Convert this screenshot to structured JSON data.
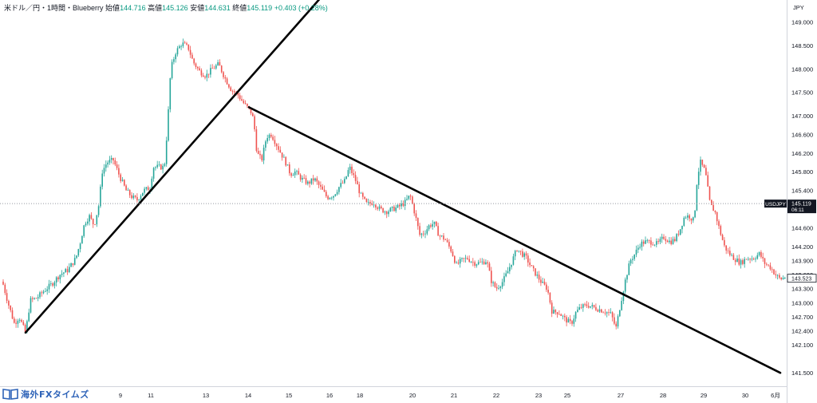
{
  "legend": {
    "symbol": "米ドル／円・1時間・Blueberry",
    "open_label": "始値",
    "open": "144.716",
    "high_label": "高値",
    "high": "145.126",
    "low_label": "安値",
    "low": "144.631",
    "close_label": "終値",
    "close": "145.119",
    "change": "+0.403 (+0.28%)"
  },
  "logo": {
    "text": "海外FXタイムズ"
  },
  "colors": {
    "up": "#26a69a",
    "down": "#ef5350",
    "trendline": "#000000",
    "label_bg": "#131722",
    "grid": "#ffffff"
  },
  "chart_data": {
    "type": "candlestick",
    "currency_label": "JPY",
    "ylim": [
      141.5,
      149.2
    ],
    "yticks": [
      "149.000",
      "148.500",
      "148.000",
      "147.500",
      "147.000",
      "146.600",
      "146.200",
      "145.800",
      "145.400",
      "145.000",
      "144.600",
      "144.200",
      "143.900",
      "143.600",
      "143.300",
      "143.000",
      "142.700",
      "142.400",
      "142.100",
      "141.500"
    ],
    "xticks": [
      {
        "label": "9",
        "t": 151
      },
      {
        "label": "11",
        "t": 189
      },
      {
        "label": "13",
        "t": 258
      },
      {
        "label": "14",
        "t": 311
      },
      {
        "label": "15",
        "t": 362
      },
      {
        "label": "16",
        "t": 413
      },
      {
        "label": "18",
        "t": 451
      },
      {
        "label": "20",
        "t": 517
      },
      {
        "label": "21",
        "t": 569
      },
      {
        "label": "22",
        "t": 622
      },
      {
        "label": "23",
        "t": 675
      },
      {
        "label": "25",
        "t": 711
      },
      {
        "label": "27",
        "t": 778
      },
      {
        "label": "28",
        "t": 831
      },
      {
        "label": "29",
        "t": 882
      },
      {
        "label": "30",
        "t": 934
      },
      {
        "label": "6月",
        "t": 972
      }
    ],
    "price_line": {
      "symbol": "USDJPY",
      "price": "145.119",
      "countdown": "06:11",
      "value": 145.119
    },
    "price_label_lower": {
      "price": "143.523",
      "value": 143.523
    },
    "path": [
      [
        3,
        143.45
      ],
      [
        10,
        143.0
      ],
      [
        18,
        142.55
      ],
      [
        24,
        142.7
      ],
      [
        32,
        142.35
      ],
      [
        38,
        143.05
      ],
      [
        46,
        143.1
      ],
      [
        55,
        143.25
      ],
      [
        65,
        143.4
      ],
      [
        75,
        143.6
      ],
      [
        85,
        143.7
      ],
      [
        95,
        143.95
      ],
      [
        100,
        144.25
      ],
      [
        106,
        144.7
      ],
      [
        112,
        144.85
      ],
      [
        118,
        144.65
      ],
      [
        124,
        145.1
      ],
      [
        128,
        145.8
      ],
      [
        134,
        146.0
      ],
      [
        142,
        146.05
      ],
      [
        150,
        145.7
      ],
      [
        158,
        145.4
      ],
      [
        166,
        145.25
      ],
      [
        172,
        145.2
      ],
      [
        180,
        145.4
      ],
      [
        188,
        145.45
      ],
      [
        192,
        145.9
      ],
      [
        198,
        145.9
      ],
      [
        206,
        145.9
      ],
      [
        210,
        146.8
      ],
      [
        214,
        148.0
      ],
      [
        220,
        148.35
      ],
      [
        228,
        148.55
      ],
      [
        236,
        148.45
      ],
      [
        242,
        148.15
      ],
      [
        250,
        147.95
      ],
      [
        258,
        147.85
      ],
      [
        266,
        148.0
      ],
      [
        274,
        148.1
      ],
      [
        282,
        147.8
      ],
      [
        290,
        147.55
      ],
      [
        298,
        147.45
      ],
      [
        306,
        147.25
      ],
      [
        314,
        147.1
      ],
      [
        318,
        146.9
      ],
      [
        322,
        146.2
      ],
      [
        328,
        146.05
      ],
      [
        334,
        146.55
      ],
      [
        340,
        146.6
      ],
      [
        346,
        146.4
      ],
      [
        352,
        146.2
      ],
      [
        358,
        146.0
      ],
      [
        364,
        145.75
      ],
      [
        370,
        145.8
      ],
      [
        378,
        145.65
      ],
      [
        386,
        145.55
      ],
      [
        394,
        145.65
      ],
      [
        402,
        145.45
      ],
      [
        410,
        145.25
      ],
      [
        418,
        145.3
      ],
      [
        426,
        145.5
      ],
      [
        432,
        145.6
      ],
      [
        438,
        145.9
      ],
      [
        446,
        145.6
      ],
      [
        452,
        145.3
      ],
      [
        460,
        145.1
      ],
      [
        468,
        145.15
      ],
      [
        476,
        145.0
      ],
      [
        484,
        144.95
      ],
      [
        492,
        145.0
      ],
      [
        500,
        145.05
      ],
      [
        508,
        145.15
      ],
      [
        514,
        145.3
      ],
      [
        520,
        144.9
      ],
      [
        526,
        144.45
      ],
      [
        532,
        144.5
      ],
      [
        538,
        144.65
      ],
      [
        544,
        144.7
      ],
      [
        550,
        144.45
      ],
      [
        558,
        144.35
      ],
      [
        566,
        144.1
      ],
      [
        572,
        143.8
      ],
      [
        578,
        143.9
      ],
      [
        586,
        143.95
      ],
      [
        594,
        143.85
      ],
      [
        602,
        143.85
      ],
      [
        610,
        143.9
      ],
      [
        616,
        143.45
      ],
      [
        622,
        143.3
      ],
      [
        630,
        143.45
      ],
      [
        636,
        143.65
      ],
      [
        642,
        143.9
      ],
      [
        648,
        144.15
      ],
      [
        654,
        144.05
      ],
      [
        660,
        143.95
      ],
      [
        666,
        143.75
      ],
      [
        672,
        143.6
      ],
      [
        680,
        143.4
      ],
      [
        686,
        143.3
      ],
      [
        692,
        142.8
      ],
      [
        700,
        142.8
      ],
      [
        708,
        142.65
      ],
      [
        716,
        142.55
      ],
      [
        722,
        142.8
      ],
      [
        728,
        142.9
      ],
      [
        736,
        142.95
      ],
      [
        744,
        142.9
      ],
      [
        752,
        142.85
      ],
      [
        760,
        142.8
      ],
      [
        766,
        142.75
      ],
      [
        772,
        142.45
      ],
      [
        778,
        143.0
      ],
      [
        784,
        143.5
      ],
      [
        790,
        143.9
      ],
      [
        796,
        144.05
      ],
      [
        802,
        144.25
      ],
      [
        808,
        144.3
      ],
      [
        816,
        144.3
      ],
      [
        824,
        144.25
      ],
      [
        832,
        144.4
      ],
      [
        840,
        144.3
      ],
      [
        846,
        144.35
      ],
      [
        852,
        144.55
      ],
      [
        858,
        144.85
      ],
      [
        864,
        144.85
      ],
      [
        870,
        144.75
      ],
      [
        874,
        145.7
      ],
      [
        878,
        146.0
      ],
      [
        884,
        145.8
      ],
      [
        890,
        145.1
      ],
      [
        896,
        144.95
      ],
      [
        902,
        144.55
      ],
      [
        908,
        144.2
      ],
      [
        914,
        144.05
      ],
      [
        920,
        143.95
      ],
      [
        928,
        143.85
      ],
      [
        936,
        143.95
      ],
      [
        944,
        143.95
      ],
      [
        952,
        144.05
      ],
      [
        958,
        143.85
      ],
      [
        966,
        143.75
      ],
      [
        972,
        143.6
      ],
      [
        978,
        143.5
      ],
      [
        984,
        143.55
      ]
    ],
    "trendlines": [
      {
        "from": [
          32,
          142.36
        ],
        "to": [
          437,
          150.2
        ]
      },
      {
        "from": [
          312,
          147.18
        ],
        "to": [
          978,
          141.5
        ]
      }
    ]
  }
}
